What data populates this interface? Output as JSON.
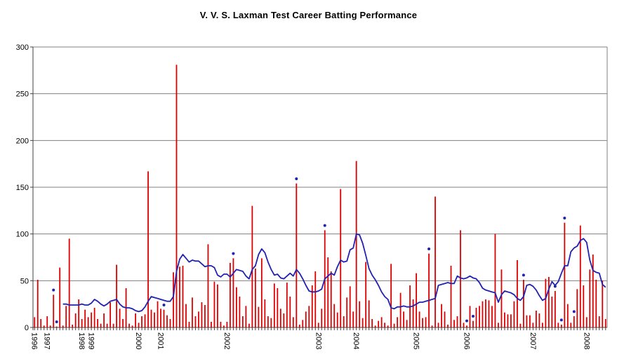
{
  "title": "V. V. S. Laxman Test Career Batting Performance",
  "chart_data": {
    "type": "bar+line",
    "title": "V. V. S. Laxman Test Career Batting Performance",
    "x_unit": "innings (chronological)",
    "y_axis": {
      "min": 0,
      "max": 300,
      "step": 50,
      "tick_labels": [
        "0",
        "50",
        "100",
        "150",
        "200",
        "250",
        "300"
      ]
    },
    "grid": "horizontal",
    "legend": "none",
    "colors": {
      "bars": "#dd0000",
      "average_line": "#2222b2",
      "not_out_dot": "#2222b2",
      "gridline": "#808080",
      "axis": "#404040",
      "text": "#000000",
      "background": "#ffffff"
    },
    "year_ticks": [
      {
        "year": "1996",
        "index": 0
      },
      {
        "year": "1997",
        "index": 4
      },
      {
        "year": "1998",
        "index": 15
      },
      {
        "year": "1999",
        "index": 18
      },
      {
        "year": "2000",
        "index": 33
      },
      {
        "year": "2001",
        "index": 40
      },
      {
        "year": "2002",
        "index": 61
      },
      {
        "year": "2003",
        "index": 90
      },
      {
        "year": "2004",
        "index": 102
      },
      {
        "year": "2005",
        "index": 121
      },
      {
        "year": "2006",
        "index": 137
      },
      {
        "year": "2007",
        "index": 158
      },
      {
        "year": "2008",
        "index": 175
      }
    ],
    "series": [
      {
        "name": "runs-per-innings",
        "type": "bar",
        "values": [
          11,
          51,
          9,
          2,
          12,
          2,
          35,
          1,
          64,
          2,
          23,
          95,
          3,
          15,
          30,
          9,
          19,
          11,
          16,
          21,
          9,
          4,
          15,
          4,
          27,
          4,
          67,
          20,
          9,
          42,
          4,
          2,
          15,
          5,
          12,
          14,
          167,
          19,
          16,
          28,
          20,
          19,
          13,
          9,
          59,
          281,
          65,
          66,
          25,
          6,
          32,
          12,
          17,
          27,
          24,
          89,
          6,
          49,
          46,
          6,
          2,
          6,
          69,
          74,
          43,
          33,
          12,
          23,
          4,
          130,
          63,
          22,
          74,
          30,
          12,
          10,
          47,
          42,
          20,
          15,
          48,
          33,
          11,
          154,
          3,
          8,
          17,
          23,
          45,
          60,
          5,
          20,
          104,
          75,
          60,
          25,
          16,
          148,
          12,
          32,
          44,
          17,
          178,
          28,
          10,
          70,
          29,
          9,
          2,
          7,
          11,
          5,
          2,
          68,
          4,
          11,
          37,
          17,
          8,
          45,
          30,
          58,
          17,
          10,
          11,
          79,
          2,
          140,
          5,
          25,
          17,
          3,
          66,
          8,
          12,
          104,
          5,
          2,
          23,
          7,
          21,
          23,
          28,
          30,
          29,
          23,
          100,
          5,
          62,
          16,
          14,
          14,
          28,
          72,
          4,
          51,
          13,
          13,
          5,
          18,
          15,
          5,
          52,
          54,
          33,
          39,
          5,
          3,
          112,
          25,
          5,
          12,
          41,
          109,
          45,
          11,
          62,
          78,
          51,
          12,
          50,
          9
        ]
      },
      {
        "name": "not-out-innings-markers",
        "type": "point",
        "marker_offset_runs": 5,
        "indices": [
          6,
          7,
          41,
          63,
          83,
          92,
          125,
          137,
          139,
          155,
          165,
          167,
          168,
          171
        ]
      },
      {
        "name": "recent-form-average",
        "type": "line",
        "start_index": 9,
        "values": [
          25,
          25,
          24,
          24,
          24,
          24,
          25,
          24,
          24,
          26,
          30,
          28,
          25,
          23,
          25,
          28,
          29,
          30,
          25,
          22,
          21,
          21,
          20,
          18,
          17,
          18,
          22,
          28,
          33,
          32,
          31,
          30,
          29,
          28,
          28,
          33,
          60,
          73,
          78,
          74,
          70,
          72,
          71,
          71,
          68,
          65,
          66,
          66,
          64,
          56,
          54,
          57,
          57,
          54,
          58,
          62,
          61,
          60,
          55,
          52,
          62,
          66,
          78,
          84,
          80,
          70,
          62,
          56,
          57,
          53,
          52,
          55,
          58,
          55,
          62,
          58,
          52,
          45,
          39,
          38,
          38,
          39,
          41,
          52,
          55,
          58,
          56,
          65,
          72,
          70,
          71,
          83,
          85,
          100,
          99,
          90,
          77,
          63,
          56,
          51,
          45,
          38,
          33,
          30,
          21,
          20,
          22,
          22,
          23,
          22,
          22,
          23,
          25,
          27,
          27,
          28,
          29,
          30,
          31,
          45,
          46,
          47,
          48,
          47,
          47,
          55,
          53,
          52,
          53,
          55,
          53,
          52,
          48,
          42,
          40,
          39,
          38,
          37,
          27,
          35,
          39,
          38,
          37,
          35,
          31,
          29,
          33,
          45,
          46,
          44,
          40,
          34,
          29,
          31,
          41,
          49,
          45,
          49,
          58,
          66,
          66,
          81,
          85,
          87,
          93,
          95,
          91,
          72,
          61,
          59,
          58,
          46,
          43
        ]
      }
    ]
  }
}
